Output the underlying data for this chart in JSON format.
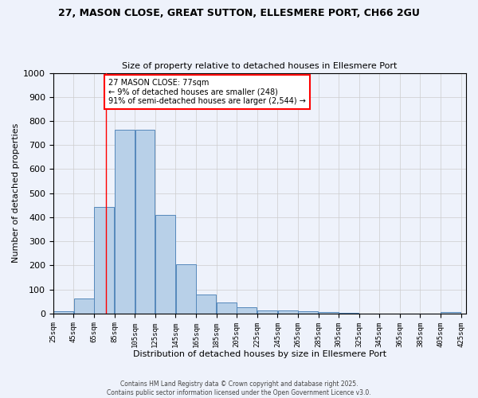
{
  "title_line1": "27, MASON CLOSE, GREAT SUTTON, ELLESMERE PORT, CH66 2GU",
  "title_line2": "Size of property relative to detached houses in Ellesmere Port",
  "xlabel": "Distribution of detached houses by size in Ellesmere Port",
  "ylabel": "Number of detached properties",
  "bins_left": [
    25,
    45,
    65,
    85,
    105,
    125,
    145,
    165,
    185,
    205,
    225,
    245,
    265,
    285,
    305,
    325,
    345,
    365,
    385,
    405
  ],
  "bin_width": 20,
  "counts": [
    10,
    63,
    443,
    765,
    765,
    410,
    205,
    80,
    46,
    27,
    12,
    12,
    10,
    5,
    3,
    0,
    0,
    0,
    0,
    5
  ],
  "property_size": 77,
  "annotation_line1": "27 MASON CLOSE: 77sqm",
  "annotation_line2": "← 9% of detached houses are smaller (248)",
  "annotation_line3": "91% of semi-detached houses are larger (2,544) →",
  "annotation_box_color": "white",
  "annotation_box_edgecolor": "red",
  "bar_facecolor": "#b8d0e8",
  "bar_edgecolor": "#5588bb",
  "vline_color": "red",
  "grid_color": "#cccccc",
  "bg_color": "#eef2fb",
  "footer_text": "Contains HM Land Registry data © Crown copyright and database right 2025.\nContains public sector information licensed under the Open Government Licence v3.0.",
  "ylim": [
    0,
    1000
  ],
  "yticks": [
    0,
    100,
    200,
    300,
    400,
    500,
    600,
    700,
    800,
    900,
    1000
  ],
  "xlim_left": 25,
  "xlim_right": 430
}
